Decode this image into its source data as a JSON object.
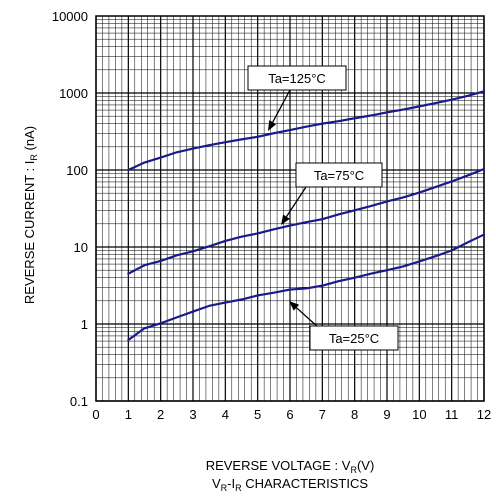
{
  "chart_data": {
    "type": "line",
    "xlabel": {
      "main": "REVERSE VOLTAGE : V",
      "sub": "R",
      "suffix": "(V)"
    },
    "ylabel": {
      "main": "REVERSE CURRENT : I",
      "sub": "R",
      "suffix": " (nA)"
    },
    "caption": {
      "part1": "V",
      "sub1": "R",
      "part2": "-I",
      "sub2": "R",
      "part3": " CHARACTERISTICS"
    },
    "xlim": [
      0,
      12
    ],
    "ylim": [
      0.1,
      10000
    ],
    "yscale": "log",
    "grid": true,
    "x_ticks": [
      "0",
      "1",
      "2",
      "3",
      "4",
      "5",
      "6",
      "7",
      "8",
      "9",
      "10",
      "11",
      "12"
    ],
    "y_ticks": [
      "0.1",
      "1",
      "10",
      "100",
      "1000",
      "10000"
    ],
    "line_color": "#1a1a8c",
    "series": [
      {
        "name": "Ta=125°C",
        "x": [
          1,
          1.5,
          2,
          2.5,
          3,
          3.5,
          4,
          4.5,
          5,
          5.5,
          6,
          6.5,
          7,
          7.5,
          8,
          8.5,
          9,
          9.5,
          10,
          10.5,
          11,
          11.5,
          12
        ],
        "y": [
          100,
          125,
          145,
          170,
          190,
          210,
          230,
          250,
          270,
          300,
          330,
          365,
          400,
          430,
          470,
          510,
          560,
          610,
          670,
          740,
          820,
          920,
          1050
        ]
      },
      {
        "name": "Ta=75°C",
        "x": [
          1,
          1.5,
          2,
          2.5,
          3,
          3.5,
          4,
          4.5,
          5,
          5.5,
          6,
          6.5,
          7,
          7.5,
          8,
          8.5,
          9,
          9.5,
          10,
          10.5,
          11,
          11.5,
          12
        ],
        "y": [
          4.5,
          5.8,
          6.6,
          7.8,
          8.8,
          10.2,
          12,
          13.6,
          15,
          17,
          19,
          21,
          23,
          26.5,
          30,
          34,
          39,
          44,
          51,
          60,
          71,
          85,
          103
        ]
      },
      {
        "name": "Ta=25°C",
        "x": [
          1,
          1.5,
          2,
          2.5,
          3,
          3.5,
          4,
          4.5,
          5,
          5.5,
          6,
          6.5,
          7,
          7.5,
          8,
          8.5,
          9,
          9.5,
          10,
          10.5,
          11,
          11.5,
          12
        ],
        "y": [
          0.62,
          0.88,
          1.02,
          1.22,
          1.45,
          1.72,
          1.9,
          2.08,
          2.35,
          2.55,
          2.8,
          2.9,
          3.15,
          3.6,
          4.0,
          4.5,
          5.0,
          5.6,
          6.5,
          7.6,
          9.0,
          11.5,
          14.5
        ]
      }
    ]
  }
}
